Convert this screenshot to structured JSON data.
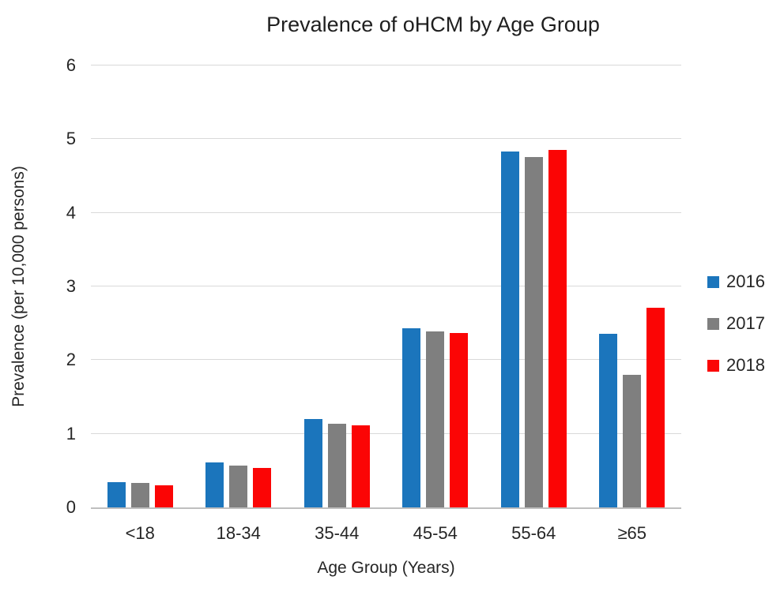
{
  "chart_data": {
    "type": "bar",
    "title": "Prevalence of oHCM by Age Group",
    "xlabel": "Age Group (Years)",
    "ylabel": "Prevalence (per 10,000 persons)",
    "categories": [
      "<18",
      "18-34",
      "35-44",
      "45-54",
      "55-64",
      "≥65"
    ],
    "series": [
      {
        "name": "2016",
        "color": "#1B75BC",
        "values": [
          0.34,
          0.61,
          1.2,
          2.43,
          4.83,
          2.36
        ]
      },
      {
        "name": "2017",
        "color": "#7F7F7F",
        "values": [
          0.33,
          0.57,
          1.14,
          2.39,
          4.76,
          1.8
        ]
      },
      {
        "name": "2018",
        "color": "#FB0505",
        "values": [
          0.3,
          0.54,
          1.11,
          2.37,
          4.85,
          2.71
        ]
      }
    ],
    "ylim": [
      0,
      6
    ],
    "yticks": [
      0,
      1,
      2,
      3,
      4,
      5,
      6
    ],
    "grid": true,
    "legend_position": "right"
  },
  "colors": {
    "gridline": "#D9D9D9",
    "axis_line": "#BFBFBF",
    "text": "#262626"
  }
}
